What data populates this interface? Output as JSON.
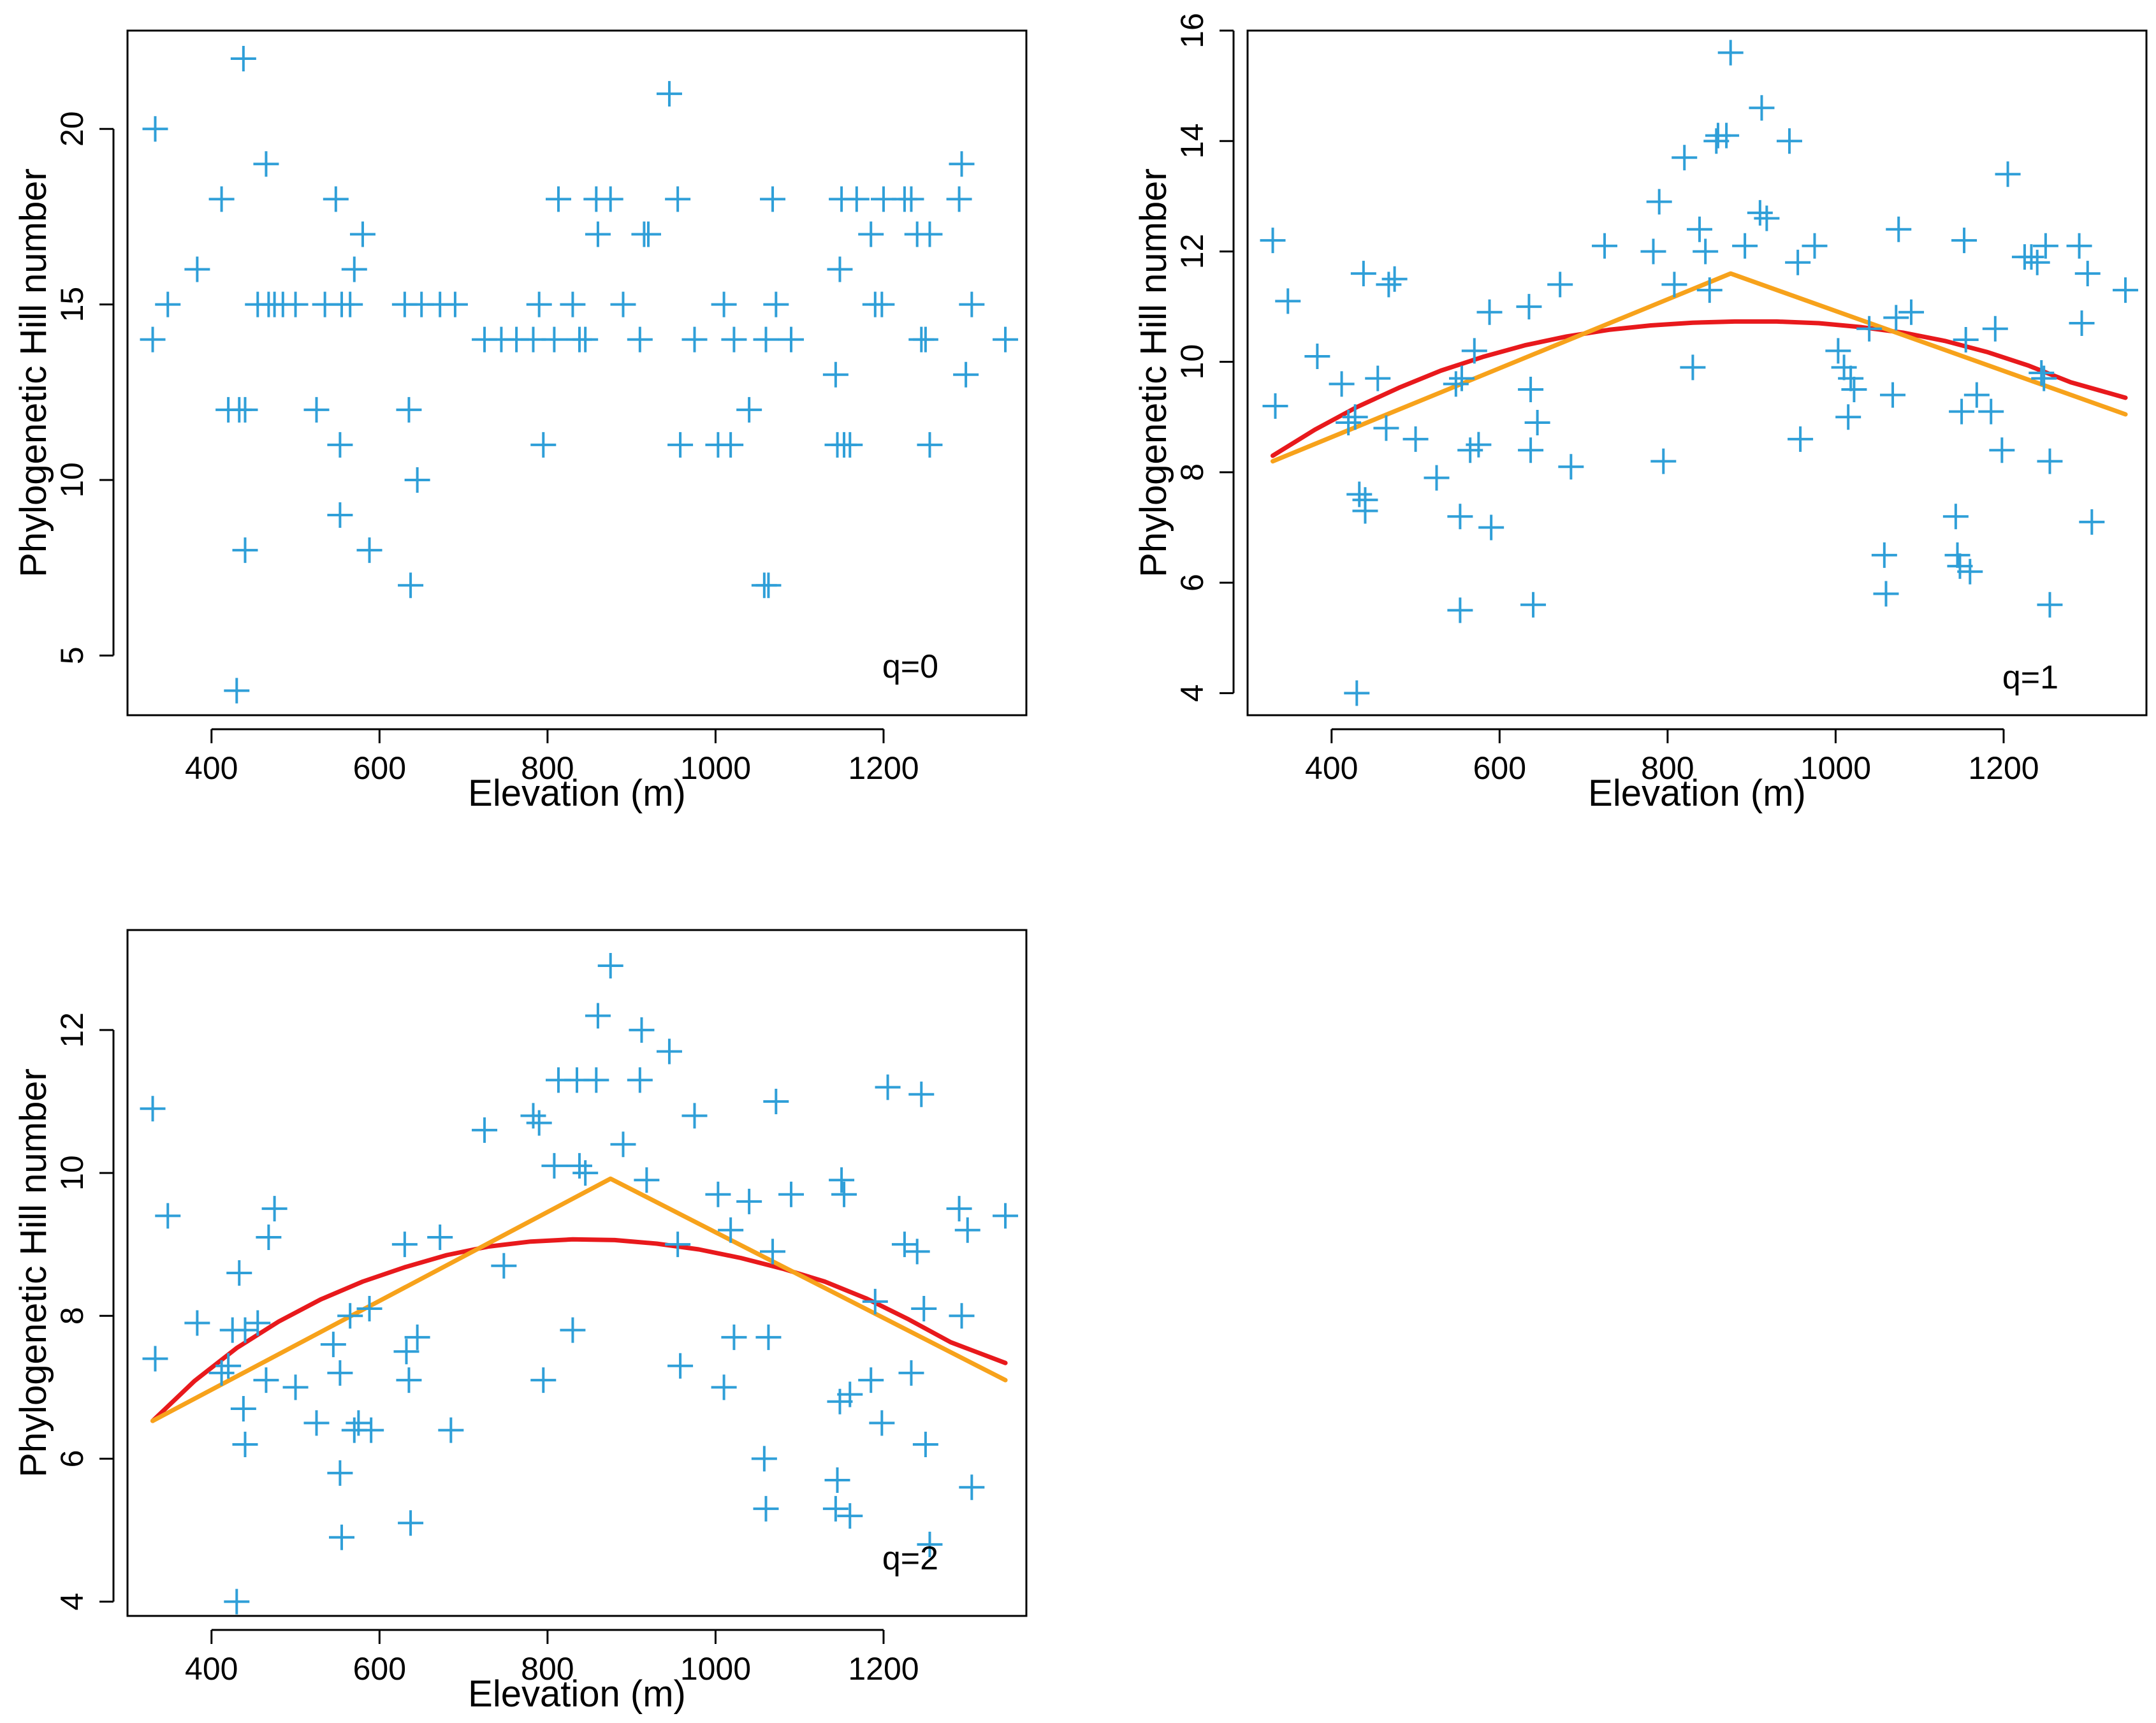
{
  "colors": {
    "points": "#2f9fd8",
    "quadratic_fit": "#e8191c",
    "segmented_fit": "#f7a21b",
    "axes": "#000000"
  },
  "chart_data": [
    {
      "type": "scatter",
      "panel_label": "q=0",
      "xlabel": "Elevation (m)",
      "ylabel": "Phylogenetic Hill number",
      "xlim": [
        300,
        1370
      ],
      "ylim": [
        3.3,
        22.8
      ],
      "xticks": [
        "400",
        "600",
        "800",
        "1000",
        "1200"
      ],
      "yticks": [
        "5",
        "10",
        "15",
        "20"
      ],
      "points": [
        [
          330,
          14
        ],
        [
          333,
          20
        ],
        [
          348,
          15
        ],
        [
          383,
          16
        ],
        [
          412,
          18
        ],
        [
          420,
          12
        ],
        [
          430,
          4
        ],
        [
          433,
          12
        ],
        [
          438,
          22
        ],
        [
          440,
          8
        ],
        [
          440,
          12
        ],
        [
          455,
          15
        ],
        [
          465,
          19
        ],
        [
          468,
          15
        ],
        [
          475,
          15
        ],
        [
          485,
          15
        ],
        [
          500,
          15
        ],
        [
          525,
          12
        ],
        [
          535,
          15
        ],
        [
          548,
          18
        ],
        [
          553,
          11
        ],
        [
          553,
          9
        ],
        [
          555,
          15
        ],
        [
          565,
          15
        ],
        [
          570,
          16
        ],
        [
          580,
          17
        ],
        [
          588,
          8
        ],
        [
          630,
          15
        ],
        [
          635,
          12
        ],
        [
          637,
          7
        ],
        [
          645,
          10
        ],
        [
          650,
          15
        ],
        [
          672,
          15
        ],
        [
          690,
          15
        ],
        [
          725,
          14
        ],
        [
          745,
          14
        ],
        [
          763,
          14
        ],
        [
          783,
          14
        ],
        [
          790,
          15
        ],
        [
          795,
          11
        ],
        [
          808,
          14
        ],
        [
          813,
          18
        ],
        [
          830,
          15
        ],
        [
          838,
          14
        ],
        [
          845,
          14
        ],
        [
          858,
          18
        ],
        [
          860,
          17
        ],
        [
          875,
          18
        ],
        [
          890,
          15
        ],
        [
          910,
          14
        ],
        [
          915,
          17
        ],
        [
          920,
          17
        ],
        [
          945,
          21
        ],
        [
          955,
          18
        ],
        [
          958,
          11
        ],
        [
          975,
          14
        ],
        [
          1003,
          11
        ],
        [
          1010,
          15
        ],
        [
          1018,
          11
        ],
        [
          1022,
          14
        ],
        [
          1040,
          12
        ],
        [
          1058,
          7
        ],
        [
          1060,
          14
        ],
        [
          1063,
          7
        ],
        [
          1068,
          18
        ],
        [
          1072,
          15
        ],
        [
          1090,
          14
        ],
        [
          1143,
          13
        ],
        [
          1145,
          11
        ],
        [
          1148,
          16
        ],
        [
          1150,
          18
        ],
        [
          1153,
          11
        ],
        [
          1160,
          11
        ],
        [
          1168,
          18
        ],
        [
          1185,
          17
        ],
        [
          1190,
          15
        ],
        [
          1198,
          15
        ],
        [
          1200,
          18
        ],
        [
          1225,
          18
        ],
        [
          1233,
          18
        ],
        [
          1240,
          17
        ],
        [
          1245,
          14
        ],
        [
          1250,
          14
        ],
        [
          1255,
          17
        ],
        [
          1255,
          11
        ],
        [
          1290,
          18
        ],
        [
          1293,
          19
        ],
        [
          1298,
          13
        ],
        [
          1305,
          15
        ],
        [
          1345,
          14
        ]
      ]
    },
    {
      "type": "scatter",
      "panel_label": "q=1",
      "xlabel": "Elevation (m)",
      "ylabel": "Phylogenetic Hill number",
      "xlim": [
        300,
        1370
      ],
      "ylim": [
        3.6,
        16.0
      ],
      "xticks": [
        "400",
        "600",
        "800",
        "1000",
        "1200"
      ],
      "yticks": [
        "4",
        "6",
        "8",
        "10",
        "12",
        "14",
        "16"
      ],
      "points": [
        [
          330,
          12.2
        ],
        [
          333,
          9.2
        ],
        [
          348,
          11.1
        ],
        [
          383,
          10.1
        ],
        [
          412,
          9.6
        ],
        [
          420,
          8.9
        ],
        [
          428,
          9.0
        ],
        [
          430,
          4.0
        ],
        [
          433,
          7.6
        ],
        [
          438,
          11.6
        ],
        [
          440,
          7.3
        ],
        [
          440,
          7.5
        ],
        [
          455,
          9.7
        ],
        [
          465,
          8.8
        ],
        [
          468,
          11.4
        ],
        [
          475,
          11.5
        ],
        [
          500,
          8.6
        ],
        [
          525,
          7.9
        ],
        [
          548,
          9.6
        ],
        [
          553,
          7.2
        ],
        [
          553,
          5.5
        ],
        [
          555,
          9.7
        ],
        [
          565,
          8.4
        ],
        [
          570,
          10.2
        ],
        [
          575,
          8.5
        ],
        [
          588,
          10.9
        ],
        [
          590,
          7.0
        ],
        [
          635,
          11.0
        ],
        [
          637,
          8.4
        ],
        [
          637,
          9.5
        ],
        [
          640,
          5.6
        ],
        [
          645,
          8.9
        ],
        [
          672,
          11.4
        ],
        [
          685,
          8.1
        ],
        [
          725,
          12.1
        ],
        [
          783,
          12.0
        ],
        [
          790,
          12.9
        ],
        [
          795,
          8.2
        ],
        [
          808,
          11.4
        ],
        [
          820,
          13.7
        ],
        [
          830,
          9.9
        ],
        [
          838,
          12.4
        ],
        [
          845,
          12.0
        ],
        [
          850,
          11.3
        ],
        [
          858,
          14.0
        ],
        [
          860,
          14.1
        ],
        [
          870,
          14.1
        ],
        [
          875,
          15.6
        ],
        [
          892,
          12.1
        ],
        [
          910,
          12.7
        ],
        [
          912,
          14.6
        ],
        [
          918,
          12.6
        ],
        [
          945,
          14.0
        ],
        [
          955,
          11.8
        ],
        [
          958,
          8.6
        ],
        [
          975,
          12.1
        ],
        [
          1003,
          10.2
        ],
        [
          1010,
          9.9
        ],
        [
          1015,
          9.0
        ],
        [
          1018,
          9.7
        ],
        [
          1022,
          9.5
        ],
        [
          1040,
          10.6
        ],
        [
          1058,
          6.5
        ],
        [
          1060,
          5.8
        ],
        [
          1068,
          9.4
        ],
        [
          1072,
          10.8
        ],
        [
          1075,
          12.4
        ],
        [
          1090,
          10.9
        ],
        [
          1143,
          7.2
        ],
        [
          1145,
          6.5
        ],
        [
          1148,
          6.3
        ],
        [
          1150,
          9.1
        ],
        [
          1153,
          12.2
        ],
        [
          1155,
          10.4
        ],
        [
          1160,
          6.2
        ],
        [
          1168,
          9.4
        ],
        [
          1185,
          9.1
        ],
        [
          1190,
          10.6
        ],
        [
          1198,
          8.4
        ],
        [
          1205,
          13.4
        ],
        [
          1225,
          11.9
        ],
        [
          1233,
          11.9
        ],
        [
          1240,
          11.8
        ],
        [
          1245,
          9.8
        ],
        [
          1248,
          9.7
        ],
        [
          1250,
          12.1
        ],
        [
          1255,
          5.6
        ],
        [
          1255,
          8.2
        ],
        [
          1290,
          12.1
        ],
        [
          1293,
          10.7
        ],
        [
          1300,
          11.6
        ],
        [
          1305,
          7.1
        ],
        [
          1345,
          11.3
        ]
      ],
      "series": [
        {
          "name": "quadratic fit",
          "x": [
            330,
            380,
            430,
            480,
            530,
            580,
            630,
            680,
            730,
            780,
            830,
            880,
            930,
            980,
            1030,
            1080,
            1130,
            1180,
            1230,
            1280,
            1345
          ],
          "y": [
            8.3,
            8.77,
            9.18,
            9.53,
            9.84,
            10.09,
            10.3,
            10.46,
            10.58,
            10.66,
            10.71,
            10.73,
            10.73,
            10.7,
            10.63,
            10.53,
            10.38,
            10.18,
            9.93,
            9.63,
            9.35
          ]
        },
        {
          "name": "segmented fit",
          "x": [
            330,
            875,
            1345
          ],
          "y": [
            8.2,
            11.6,
            9.05
          ]
        }
      ]
    },
    {
      "type": "scatter",
      "panel_label": "q=2",
      "xlabel": "Elevation (m)",
      "ylabel": "Phylogenetic Hill number",
      "xlim": [
        300,
        1370
      ],
      "ylim": [
        3.8,
        13.4
      ],
      "xticks": [
        "400",
        "600",
        "800",
        "1000",
        "1200"
      ],
      "yticks": [
        "4",
        "6",
        "8",
        "10",
        "12"
      ],
      "points": [
        [
          330,
          10.9
        ],
        [
          333,
          7.4
        ],
        [
          348,
          9.4
        ],
        [
          383,
          7.9
        ],
        [
          412,
          7.2
        ],
        [
          420,
          7.3
        ],
        [
          425,
          7.8
        ],
        [
          430,
          4.0
        ],
        [
          433,
          8.6
        ],
        [
          438,
          6.7
        ],
        [
          440,
          6.2
        ],
        [
          440,
          7.8
        ],
        [
          455,
          7.9
        ],
        [
          465,
          7.1
        ],
        [
          468,
          9.1
        ],
        [
          475,
          9.5
        ],
        [
          500,
          7.0
        ],
        [
          525,
          6.5
        ],
        [
          545,
          7.6
        ],
        [
          553,
          7.2
        ],
        [
          553,
          5.8
        ],
        [
          555,
          4.9
        ],
        [
          565,
          8.0
        ],
        [
          570,
          6.4
        ],
        [
          575,
          6.5
        ],
        [
          588,
          8.1
        ],
        [
          590,
          6.4
        ],
        [
          630,
          9.0
        ],
        [
          632,
          7.5
        ],
        [
          635,
          7.1
        ],
        [
          637,
          5.1
        ],
        [
          645,
          7.7
        ],
        [
          672,
          9.1
        ],
        [
          685,
          6.4
        ],
        [
          725,
          10.6
        ],
        [
          748,
          8.7
        ],
        [
          783,
          10.8
        ],
        [
          790,
          10.7
        ],
        [
          795,
          7.1
        ],
        [
          808,
          10.1
        ],
        [
          813,
          11.3
        ],
        [
          830,
          7.8
        ],
        [
          835,
          11.3
        ],
        [
          838,
          10.1
        ],
        [
          845,
          10.0
        ],
        [
          858,
          11.3
        ],
        [
          860,
          12.2
        ],
        [
          875,
          12.9
        ],
        [
          890,
          10.4
        ],
        [
          910,
          11.3
        ],
        [
          912,
          12.0
        ],
        [
          918,
          9.9
        ],
        [
          945,
          11.7
        ],
        [
          955,
          9.0
        ],
        [
          958,
          7.3
        ],
        [
          975,
          10.8
        ],
        [
          1003,
          9.7
        ],
        [
          1010,
          7.0
        ],
        [
          1018,
          9.2
        ],
        [
          1022,
          7.7
        ],
        [
          1040,
          9.6
        ],
        [
          1058,
          6.0
        ],
        [
          1060,
          5.3
        ],
        [
          1063,
          7.7
        ],
        [
          1068,
          8.9
        ],
        [
          1072,
          11.0
        ],
        [
          1090,
          9.7
        ],
        [
          1143,
          5.3
        ],
        [
          1145,
          5.7
        ],
        [
          1148,
          6.8
        ],
        [
          1150,
          9.9
        ],
        [
          1153,
          9.7
        ],
        [
          1160,
          6.9
        ],
        [
          1160,
          5.2
        ],
        [
          1185,
          7.1
        ],
        [
          1190,
          8.2
        ],
        [
          1198,
          6.5
        ],
        [
          1205,
          11.2
        ],
        [
          1225,
          9.0
        ],
        [
          1233,
          7.2
        ],
        [
          1240,
          8.9
        ],
        [
          1245,
          11.1
        ],
        [
          1248,
          8.1
        ],
        [
          1250,
          6.2
        ],
        [
          1255,
          4.8
        ],
        [
          1290,
          9.5
        ],
        [
          1293,
          8.0
        ],
        [
          1300,
          9.2
        ],
        [
          1305,
          5.6
        ],
        [
          1345,
          9.4
        ]
      ],
      "series": [
        {
          "name": "quadratic fit",
          "x": [
            330,
            380,
            430,
            480,
            530,
            580,
            630,
            680,
            730,
            780,
            830,
            880,
            930,
            980,
            1030,
            1080,
            1130,
            1180,
            1230,
            1280,
            1345
          ],
          "y": [
            6.53,
            7.09,
            7.55,
            7.92,
            8.23,
            8.48,
            8.68,
            8.85,
            8.97,
            9.04,
            9.07,
            9.06,
            9.01,
            8.93,
            8.81,
            8.66,
            8.48,
            8.24,
            7.95,
            7.63,
            7.34
          ]
        },
        {
          "name": "segmented fit",
          "x": [
            330,
            875,
            1345
          ],
          "y": [
            6.53,
            9.92,
            7.1
          ]
        }
      ]
    }
  ]
}
